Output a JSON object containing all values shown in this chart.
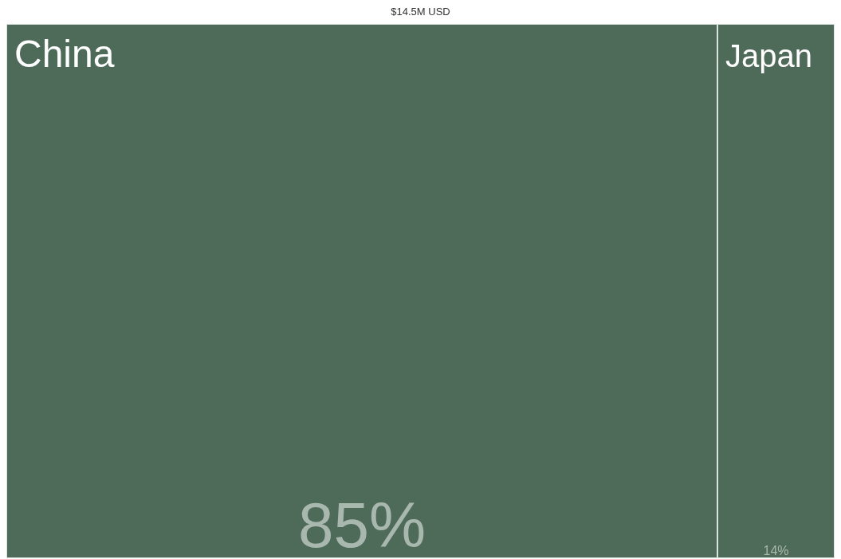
{
  "chart_data": {
    "type": "other",
    "title": "$14.5M USD",
    "categories": [
      "China",
      "Japan"
    ],
    "values": [
      85,
      14
    ],
    "value_labels": [
      "85%",
      "14%"
    ],
    "colors": [
      "#4d6b58",
      "#4d6b58"
    ]
  }
}
